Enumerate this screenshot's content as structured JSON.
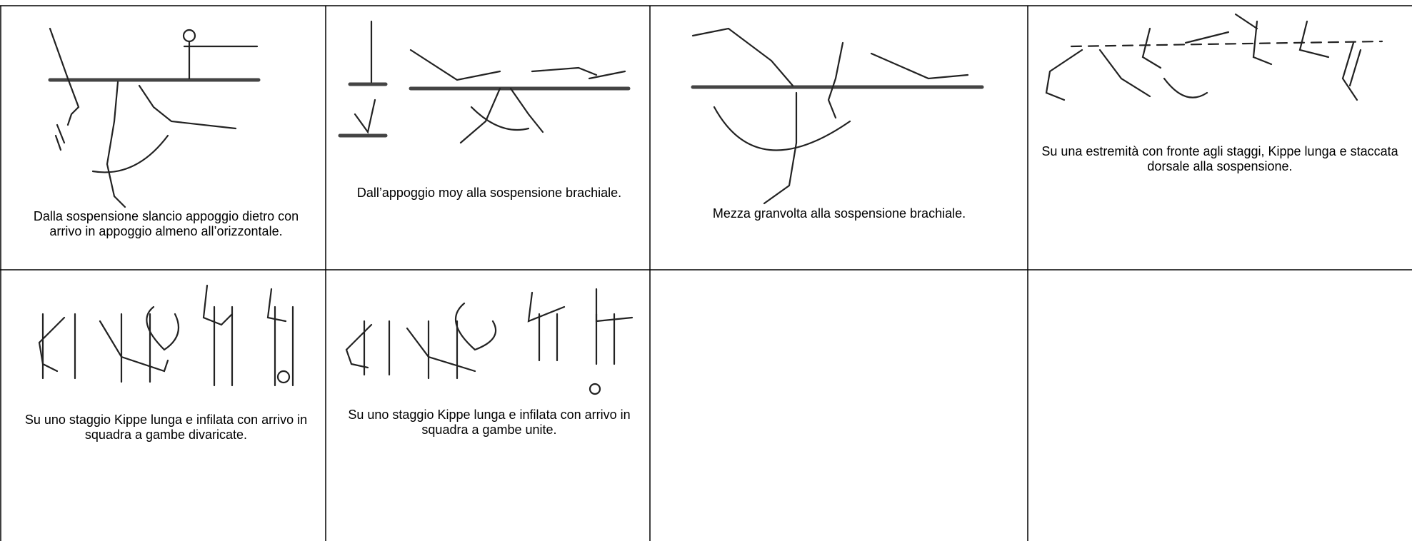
{
  "table": {
    "rows": [
      [
        "Dalla sospensione slancio appoggio dietro con arrivo in appoggio almeno all’orizzontale.",
        "Dall’appoggio moy alla sospensione brachiale.",
        "Mezza granvolta alla sospensione brachiale.",
        "Su una estremità con fronte agli staggi, Kippe lunga e staccata dorsale alla sospensione."
      ],
      [
        "Su uno staggio Kippe lunga e infilata con arrivo in squadra a gambe divaricate.",
        "Su uno staggio Kippe lunga e infilata con arrivo in squadra a gambe unite."
      ]
    ]
  }
}
